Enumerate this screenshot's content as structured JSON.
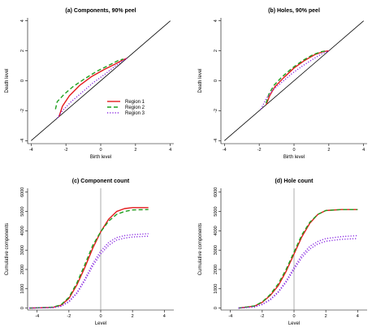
{
  "colors": {
    "region1": "#e41a1c",
    "region2": "#1fa01f",
    "region3": "#8a2be2",
    "diagonal": "#000000",
    "vline": "#888888"
  },
  "chart_data": [
    {
      "panel": "a",
      "type": "line",
      "title": "(a) Components, 90% peel",
      "xlabel": "Birth level",
      "ylabel": "Death level",
      "xlim": [
        -4.2,
        4.2
      ],
      "ylim": [
        -4.2,
        4.2
      ],
      "xticks": [
        -4,
        -2,
        0,
        2,
        4
      ],
      "yticks": [
        -4,
        -2,
        0,
        2,
        4
      ],
      "legend": {
        "position": "center-right",
        "entries": [
          "Region 1",
          "Region 2",
          "Region 3"
        ]
      },
      "reference_line": {
        "x": [
          -4,
          4
        ],
        "y": [
          -4,
          4
        ]
      },
      "series": [
        {
          "name": "Region 1",
          "style": "solid",
          "points": [
            [
              -2.4,
              -2.4
            ],
            [
              -2.2,
              -1.7
            ],
            [
              -1.8,
              -1.0
            ],
            [
              -1.2,
              -0.3
            ],
            [
              -0.5,
              0.3
            ],
            [
              0.2,
              0.75
            ],
            [
              0.8,
              1.1
            ],
            [
              1.2,
              1.35
            ],
            [
              1.5,
              1.5
            ]
          ]
        },
        {
          "name": "Region 2",
          "style": "dashed",
          "points": [
            [
              -2.6,
              -1.9
            ],
            [
              -2.5,
              -1.4
            ],
            [
              -2.1,
              -0.9
            ],
            [
              -1.6,
              -0.4
            ],
            [
              -0.9,
              0.15
            ],
            [
              -0.2,
              0.65
            ],
            [
              0.5,
              1.05
            ],
            [
              1.0,
              1.35
            ],
            [
              1.3,
              1.45
            ]
          ]
        },
        {
          "name": "Region 3",
          "style": "dotted",
          "points": [
            [
              -2.5,
              -2.5
            ],
            [
              -2.2,
              -2.0
            ],
            [
              -1.7,
              -1.4
            ],
            [
              -1.1,
              -0.8
            ],
            [
              -0.4,
              -0.1
            ],
            [
              0.2,
              0.4
            ],
            [
              0.8,
              0.95
            ],
            [
              1.3,
              1.35
            ],
            [
              1.5,
              1.5
            ]
          ]
        }
      ]
    },
    {
      "panel": "b",
      "type": "line",
      "title": "(b) Holes, 90% peel",
      "xlabel": "Birth level",
      "ylabel": "Death level",
      "xlim": [
        -4.2,
        4.2
      ],
      "ylim": [
        -4.2,
        4.2
      ],
      "xticks": [
        -4,
        -2,
        0,
        2,
        4
      ],
      "yticks": [
        -4,
        -2,
        0,
        2,
        4
      ],
      "reference_line": {
        "x": [
          -4,
          4
        ],
        "y": [
          -4,
          4
        ]
      },
      "series": [
        {
          "name": "Region 1",
          "style": "solid",
          "points": [
            [
              -1.6,
              -1.6
            ],
            [
              -1.4,
              -1.0
            ],
            [
              -1.1,
              -0.4
            ],
            [
              -0.6,
              0.2
            ],
            [
              0,
              0.85
            ],
            [
              0.6,
              1.35
            ],
            [
              1.2,
              1.75
            ],
            [
              1.7,
              1.95
            ],
            [
              2.0,
              2.0
            ]
          ]
        },
        {
          "name": "Region 2",
          "style": "dashed",
          "points": [
            [
              -1.6,
              -1.5
            ],
            [
              -1.45,
              -0.9
            ],
            [
              -1.15,
              -0.3
            ],
            [
              -0.7,
              0.25
            ],
            [
              -0.1,
              0.85
            ],
            [
              0.5,
              1.35
            ],
            [
              1.1,
              1.75
            ],
            [
              1.6,
              1.95
            ],
            [
              1.9,
              2.0
            ]
          ]
        },
        {
          "name": "Region 3",
          "style": "dotted",
          "points": [
            [
              -1.9,
              -1.9
            ],
            [
              -1.6,
              -1.2
            ],
            [
              -1.2,
              -0.6
            ],
            [
              -0.7,
              -0.1
            ],
            [
              -0.1,
              0.5
            ],
            [
              0.5,
              1.0
            ],
            [
              1.1,
              1.45
            ],
            [
              1.6,
              1.8
            ],
            [
              2.0,
              2.0
            ]
          ]
        }
      ]
    },
    {
      "panel": "c",
      "type": "line",
      "title": "(c) Component count",
      "xlabel": "Level",
      "ylabel": "Cumulative components",
      "xlim": [
        -4.6,
        4.6
      ],
      "ylim": [
        -100,
        6200
      ],
      "xticks": [
        -4,
        -2,
        0,
        2,
        4
      ],
      "yticks": [
        0,
        1000,
        2000,
        3000,
        4000,
        5000,
        6000
      ],
      "vline": 0,
      "series": [
        {
          "name": "Region 1",
          "style": "solid",
          "points": [
            [
              -4.5,
              0
            ],
            [
              -3.0,
              40
            ],
            [
              -2.5,
              150
            ],
            [
              -2.0,
              500
            ],
            [
              -1.5,
              1200
            ],
            [
              -1.0,
              2100
            ],
            [
              -0.5,
              3100
            ],
            [
              0,
              3950
            ],
            [
              0.5,
              4600
            ],
            [
              1.0,
              5000
            ],
            [
              1.5,
              5150
            ],
            [
              2.0,
              5200
            ],
            [
              3.0,
              5200
            ]
          ]
        },
        {
          "name": "Region 2",
          "style": "dashed",
          "points": [
            [
              -4.5,
              0
            ],
            [
              -3.0,
              50
            ],
            [
              -2.5,
              170
            ],
            [
              -2.0,
              560
            ],
            [
              -1.5,
              1300
            ],
            [
              -1.0,
              2250
            ],
            [
              -0.5,
              3250
            ],
            [
              0,
              3950
            ],
            [
              0.5,
              4500
            ],
            [
              1.0,
              4850
            ],
            [
              1.5,
              5000
            ],
            [
              2.0,
              5080
            ],
            [
              3.0,
              5100
            ]
          ]
        },
        {
          "name": "Region 3",
          "style": "dotted",
          "points": [
            [
              -4.5,
              0
            ],
            [
              -3.0,
              30
            ],
            [
              -2.5,
              100
            ],
            [
              -2.0,
              350
            ],
            [
              -1.5,
              800
            ],
            [
              -1.0,
              1500
            ],
            [
              -0.5,
              2300
            ],
            [
              0,
              2950
            ],
            [
              0.5,
              3400
            ],
            [
              1.0,
              3650
            ],
            [
              1.5,
              3750
            ],
            [
              2.0,
              3800
            ],
            [
              3.0,
              3850
            ]
          ]
        },
        {
          "name": "Region 3",
          "style": "dotted",
          "points": [
            [
              -4.5,
              0
            ],
            [
              -3.0,
              25
            ],
            [
              -2.5,
              90
            ],
            [
              -2.0,
              320
            ],
            [
              -1.5,
              760
            ],
            [
              -1.0,
              1420
            ],
            [
              -0.5,
              2180
            ],
            [
              0,
              2800
            ],
            [
              0.5,
              3250
            ],
            [
              1.0,
              3520
            ],
            [
              1.5,
              3620
            ],
            [
              2.0,
              3680
            ],
            [
              3.0,
              3720
            ]
          ]
        }
      ]
    },
    {
      "panel": "d",
      "type": "line",
      "title": "(d) Hole count",
      "xlabel": "Level",
      "ylabel": "Cumulative components",
      "xlim": [
        -4.6,
        4.6
      ],
      "ylim": [
        -100,
        6200
      ],
      "xticks": [
        -4,
        -2,
        0,
        2,
        4
      ],
      "yticks": [
        0,
        1000,
        2000,
        3000,
        4000,
        5000,
        6000
      ],
      "vline": 0,
      "series": [
        {
          "name": "Region 1",
          "style": "solid",
          "points": [
            [
              -3.5,
              0
            ],
            [
              -2.5,
              100
            ],
            [
              -2.0,
              300
            ],
            [
              -1.5,
              650
            ],
            [
              -1.0,
              1150
            ],
            [
              -0.5,
              1900
            ],
            [
              0,
              2800
            ],
            [
              0.5,
              3700
            ],
            [
              1.0,
              4400
            ],
            [
              1.5,
              4850
            ],
            [
              2.0,
              5050
            ],
            [
              3.0,
              5100
            ],
            [
              4.0,
              5100
            ]
          ]
        },
        {
          "name": "Region 2",
          "style": "dashed",
          "points": [
            [
              -3.5,
              0
            ],
            [
              -2.5,
              110
            ],
            [
              -2.0,
              320
            ],
            [
              -1.5,
              700
            ],
            [
              -1.0,
              1250
            ],
            [
              -0.5,
              2000
            ],
            [
              0,
              2900
            ],
            [
              0.5,
              3800
            ],
            [
              1.0,
              4450
            ],
            [
              1.5,
              4850
            ],
            [
              2.0,
              5050
            ],
            [
              3.0,
              5100
            ],
            [
              4.0,
              5100
            ]
          ]
        },
        {
          "name": "Region 3",
          "style": "dotted",
          "points": [
            [
              -3.5,
              0
            ],
            [
              -2.5,
              60
            ],
            [
              -2.0,
              200
            ],
            [
              -1.5,
              450
            ],
            [
              -1.0,
              850
            ],
            [
              -0.5,
              1400
            ],
            [
              0,
              2100
            ],
            [
              0.5,
              2750
            ],
            [
              1.0,
              3200
            ],
            [
              1.5,
              3450
            ],
            [
              2.0,
              3600
            ],
            [
              3.0,
              3700
            ],
            [
              4.0,
              3750
            ]
          ]
        },
        {
          "name": "Region 3",
          "style": "dotted",
          "points": [
            [
              -3.5,
              0
            ],
            [
              -2.5,
              55
            ],
            [
              -2.0,
              185
            ],
            [
              -1.5,
              420
            ],
            [
              -1.0,
              800
            ],
            [
              -0.5,
              1330
            ],
            [
              0,
              2000
            ],
            [
              0.5,
              2620
            ],
            [
              1.0,
              3060
            ],
            [
              1.5,
              3320
            ],
            [
              2.0,
              3460
            ],
            [
              3.0,
              3560
            ],
            [
              4.0,
              3600
            ]
          ]
        }
      ]
    }
  ]
}
